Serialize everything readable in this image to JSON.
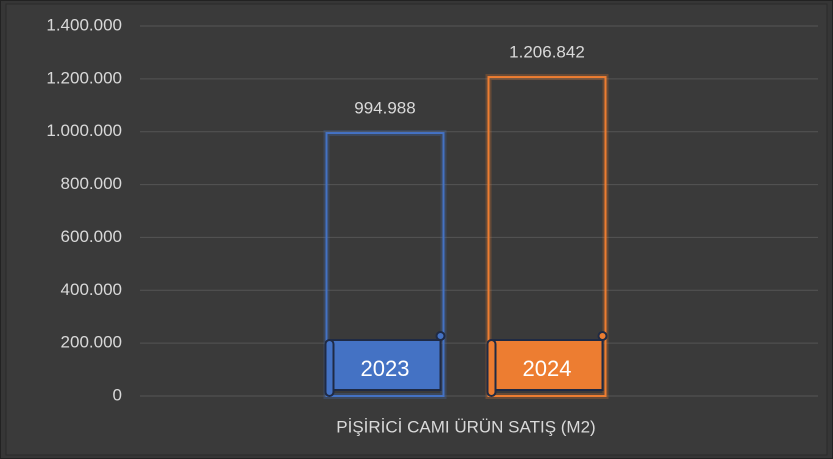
{
  "chart_data": {
    "type": "bar",
    "categories": [
      "PİŞİRİCİ CAMI ÜRÜN SATIŞ (M2)"
    ],
    "series": [
      {
        "name": "2023",
        "color": "#4472c4",
        "values": [
          994988
        ],
        "value_labels": [
          "994.988"
        ]
      },
      {
        "name": "2024",
        "color": "#ed7d31",
        "values": [
          1206842
        ],
        "value_labels": [
          "1.206.842"
        ]
      }
    ],
    "ylim": [
      0,
      1400000
    ],
    "yticks": [
      0,
      {
        "value": 200000,
        "label": "200.000"
      },
      {
        "value": 400000,
        "label": "400.000"
      },
      {
        "value": 600000,
        "label": "600.000"
      },
      {
        "value": 800000,
        "label": "800.000"
      },
      {
        "value": 1000000,
        "label": "1.000.000"
      },
      {
        "value": 1200000,
        "label": "1.200.000"
      },
      {
        "value": 1400000,
        "label": "1.400.000"
      }
    ],
    "grid": true
  }
}
